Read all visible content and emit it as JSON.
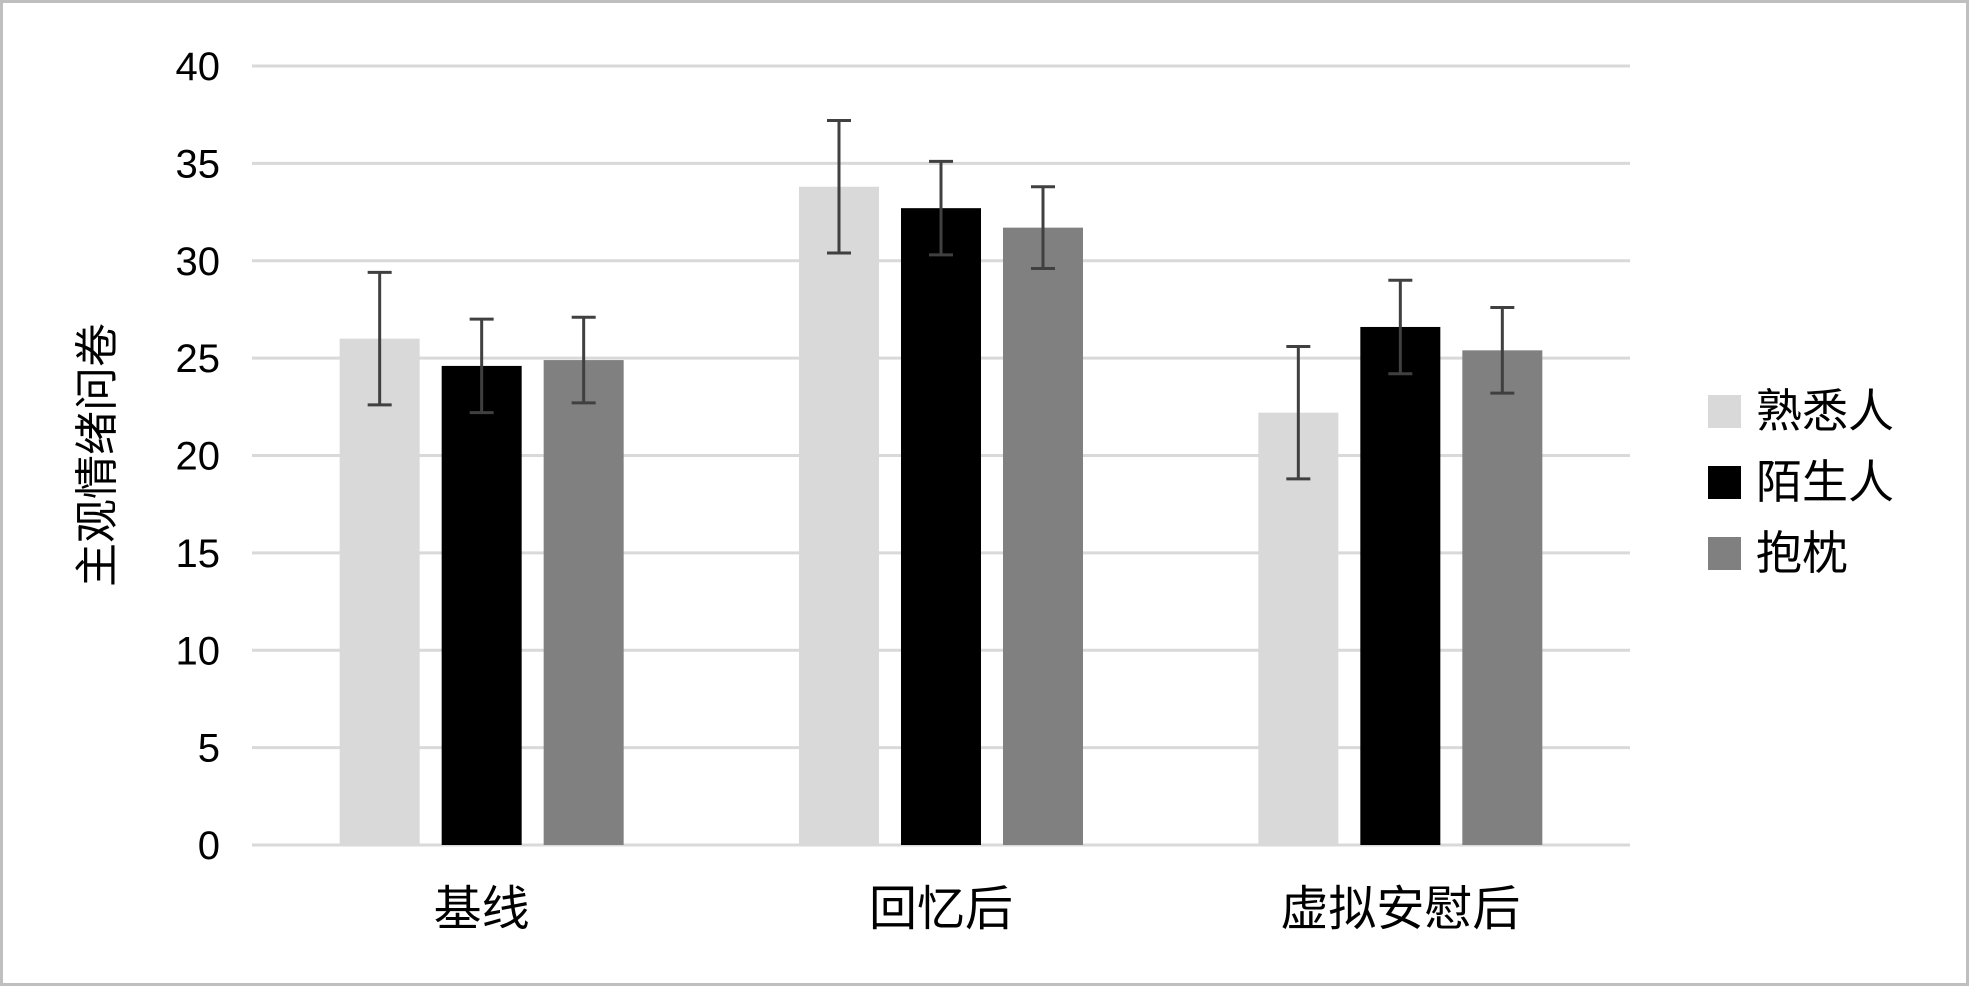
{
  "chart_data": {
    "type": "bar",
    "title": "",
    "xlabel": "",
    "ylabel": "主观情绪问卷",
    "ylim": [
      0,
      40
    ],
    "yticks": [
      0,
      5,
      10,
      15,
      20,
      25,
      30,
      35,
      40
    ],
    "grid": true,
    "legend_position": "right",
    "categories": [
      "基线",
      "回忆后",
      "虚拟安慰后"
    ],
    "series": [
      {
        "name": "熟悉人",
        "color": "#d9d9d9",
        "values": [
          26.0,
          33.8,
          22.2
        ],
        "error": [
          3.4,
          3.4,
          3.4
        ]
      },
      {
        "name": "陌生人",
        "color": "#000000",
        "values": [
          24.6,
          32.7,
          26.6
        ],
        "error": [
          2.4,
          2.4,
          2.4
        ]
      },
      {
        "name": "抱枕",
        "color": "#808080",
        "values": [
          24.9,
          31.7,
          25.4
        ],
        "error": [
          2.2,
          2.1,
          2.2
        ]
      }
    ],
    "colors": {
      "grid": "#d9d9d9",
      "error_bar": "#404040",
      "frame": "#bfbfbf"
    }
  }
}
